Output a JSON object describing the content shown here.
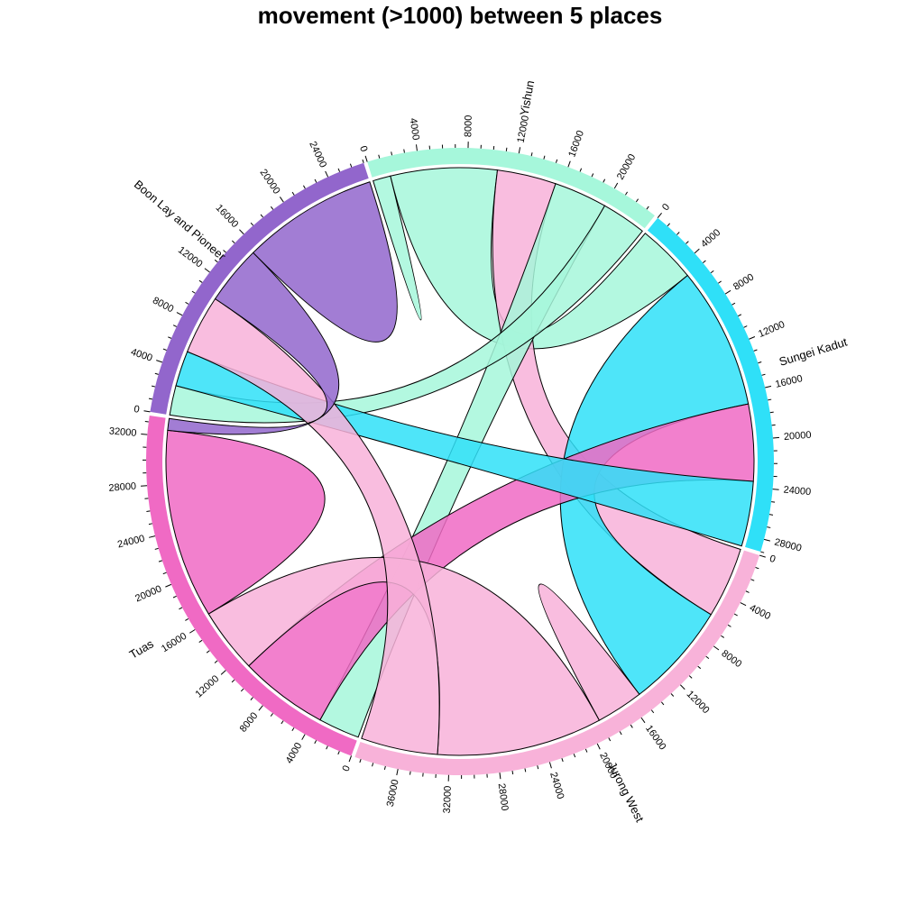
{
  "chart_data": {
    "type": "chord",
    "title": "movement (>1000) between 5 places",
    "tick_step": 4000,
    "label_step": 4000,
    "minor_step": 1000,
    "groups": [
      {
        "name": "Yishun",
        "color": "#a6f7db"
      },
      {
        "name": "Sungei Kadut",
        "color": "#2fe0f8"
      },
      {
        "name": "Jurong West",
        "color": "#f8b2d9"
      },
      {
        "name": "Tuas",
        "color": "#f06ac4"
      },
      {
        "name": "Boon Lay and Pioneer",
        "color": "#9266cc"
      }
    ],
    "matrix": [
      [
        1500,
        9000,
        5000,
        4500,
        3800
      ],
      [
        5000,
        0,
        12000,
        6500,
        5500
      ],
      [
        6000,
        9000,
        4000,
        14000,
        6500
      ],
      [
        3500,
        7500,
        5500,
        16000,
        1000
      ],
      [
        2500,
        3000,
        5000,
        5000,
        11500
      ]
    ]
  }
}
